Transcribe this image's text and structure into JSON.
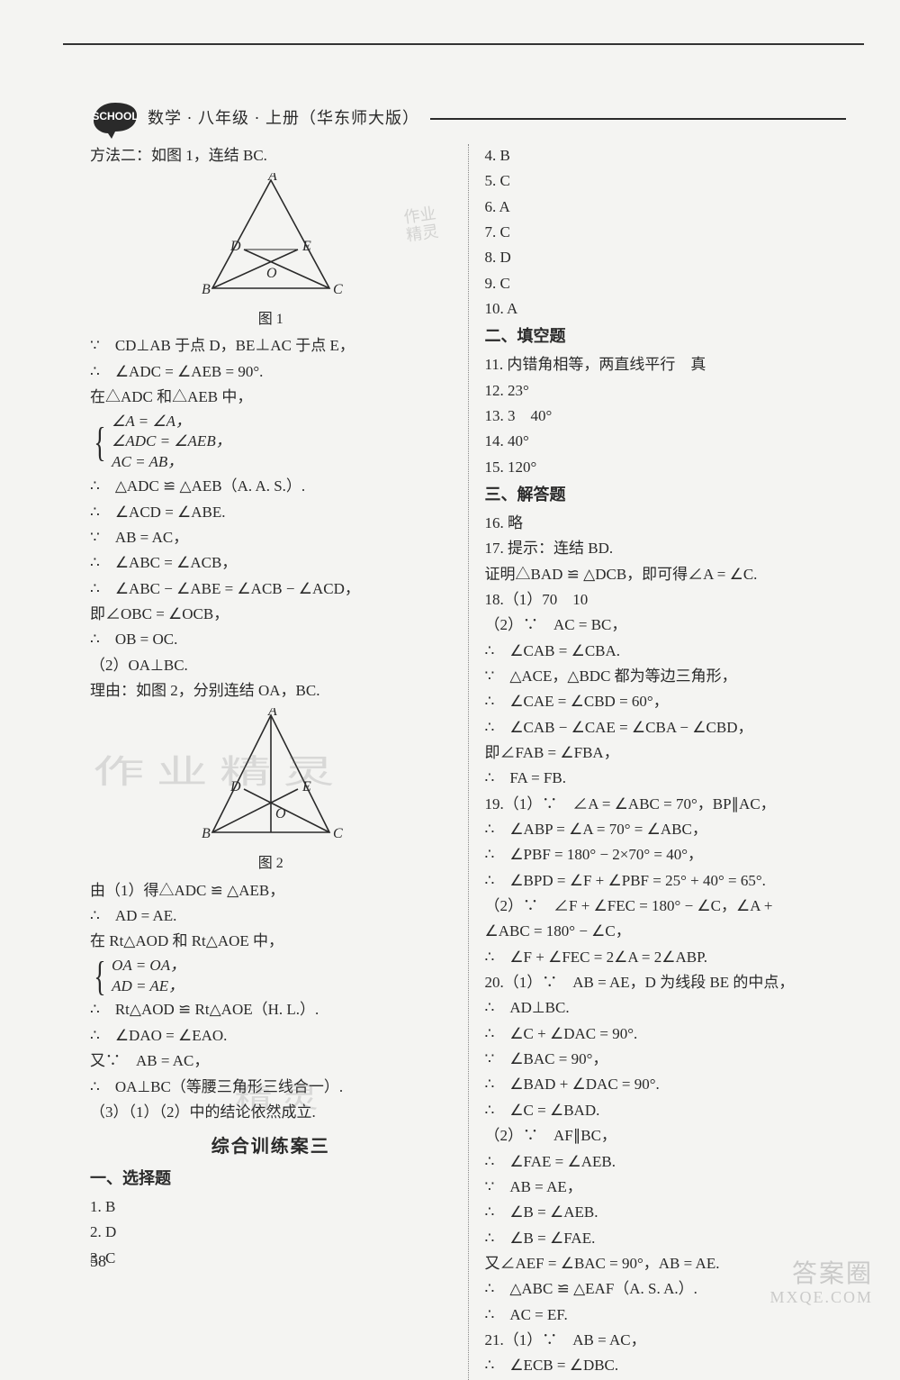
{
  "header": {
    "book_title": "数学 · 八年级 · 上册（华东师大版）"
  },
  "left": {
    "intro": "方法二：如图 1，连结 BC.",
    "fig1": {
      "caption": "图 1",
      "labels": {
        "A": "A",
        "B": "B",
        "C": "C",
        "D": "D",
        "E": "E",
        "O": "O"
      }
    },
    "proof1": [
      "∵　CD⊥AB 于点 D，BE⊥AC 于点 E，",
      "∴　∠ADC = ∠AEB = 90°.",
      "在△ADC 和△AEB 中，"
    ],
    "brace1": [
      "∠A = ∠A，",
      "∠ADC = ∠AEB，",
      "AC = AB，"
    ],
    "proof1b": [
      "∴　△ADC ≌ △AEB（A. A. S.）.",
      "∴　∠ACD = ∠ABE.",
      "∵　AB = AC，",
      "∴　∠ABC = ∠ACB，",
      "∴　∠ABC − ∠ABE = ∠ACB − ∠ACD，",
      "即∠OBC = ∠OCB，",
      "∴　OB = OC.",
      "（2）OA⊥BC.",
      "理由：如图 2，分别连结 OA，BC."
    ],
    "fig2": {
      "caption": "图 2",
      "labels": {
        "A": "A",
        "B": "B",
        "C": "C",
        "D": "D",
        "E": "E",
        "O": "O"
      }
    },
    "proof2": [
      "由（1）得△ADC ≌ △AEB，",
      "∴　AD = AE.",
      "在 Rt△AOD 和 Rt△AOE 中，"
    ],
    "brace2": [
      "OA = OA，",
      "AD = AE，"
    ],
    "proof2b": [
      "∴　Rt△AOD ≌ Rt△AOE（H. L.）.",
      "∴　∠DAO = ∠EAO.",
      "又∵　AB = AC，",
      "∴　OA⊥BC（等腰三角形三线合一）.",
      "（3）（1）（2）中的结论依然成立."
    ],
    "section": "综合训练案三",
    "choice_heading": "一、选择题",
    "choices_left": [
      "1. B",
      "2. D",
      "3. C"
    ]
  },
  "right": {
    "choices_right": [
      "4. B",
      "5. C",
      "6. A",
      "7. C",
      "8. D",
      "9. C",
      "10. A"
    ],
    "fill_heading": "二、填空题",
    "fills": [
      "11. 内错角相等，两直线平行　真",
      "12. 23°",
      "13. 3　40°",
      "14. 40°",
      "15. 120°"
    ],
    "ans_heading": "三、解答题",
    "answers": [
      "16. 略",
      "17. 提示：连结 BD.",
      "证明△BAD ≌ △DCB，即可得∠A = ∠C.",
      "18.（1）70　10",
      "（2）∵　AC = BC，",
      "∴　∠CAB = ∠CBA.",
      "∵　△ACE，△BDC 都为等边三角形，",
      "∴　∠CAE = ∠CBD = 60°，",
      "∴　∠CAB − ∠CAE = ∠CBA − ∠CBD，",
      "即∠FAB = ∠FBA，",
      "∴　FA = FB.",
      "19.（1）∵　∠A = ∠ABC = 70°，BP∥AC，",
      "∴　∠ABP = ∠A = 70° = ∠ABC，",
      "∴　∠PBF = 180° − 2×70° = 40°，",
      "∴　∠BPD = ∠F + ∠PBF = 25° + 40° = 65°.",
      "（2）∵　∠F + ∠FEC = 180° − ∠C，∠A + ",
      "∠ABC = 180° − ∠C，",
      "∴　∠F + ∠FEC = 2∠A = 2∠ABP.",
      "20.（1）∵　AB = AE，D 为线段 BE 的中点，",
      "∴　AD⊥BC.",
      "∴　∠C + ∠DAC = 90°.",
      "∵　∠BAC = 90°，",
      "∴　∠BAD + ∠DAC = 90°.",
      "∴　∠C = ∠BAD.",
      "（2）∵　AF∥BC，",
      "∴　∠FAE = ∠AEB.",
      "∵　AB = AE，",
      "∴　∠B = ∠AEB.",
      "∴　∠B = ∠FAE.",
      "又∠AEF = ∠BAC = 90°，AB = AE.",
      "∴　△ABC ≌ △EAF（A. S. A.）.",
      "∴　AC = EF.",
      "21.（1）∵　AB = AC，",
      "∴　∠ECB = ∠DBC."
    ]
  },
  "page_number": "58",
  "watermarks": {
    "wm1": "作业精灵",
    "wm2": "精灵",
    "corner_top": "答案圈",
    "corner_bottom": "MXQE.COM",
    "stamp1": "作业",
    "stamp2": "精灵"
  },
  "styling": {
    "bg": "#f4f4f2",
    "text_color": "#2a2a2a",
    "font_size_pt": 13,
    "line_stroke": "#2a2a2a",
    "dotted_divider": "#888888"
  }
}
